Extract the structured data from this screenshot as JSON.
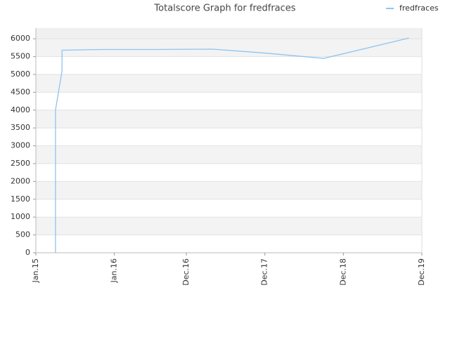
{
  "chart_data": {
    "type": "line",
    "title": "Totalscore Graph for fredfraces",
    "x": [
      "2015-04",
      "2015-04",
      "2015-05",
      "2015-05",
      "2015-11",
      "2016-07",
      "2017-04",
      "2017-12",
      "2018-09",
      "2019-10"
    ],
    "series": [
      {
        "name": "fredfraces",
        "color": "#8ec4f2",
        "values": [
          0,
          4000,
          5100,
          5680,
          5700,
          5700,
          5710,
          5600,
          5450,
          6020
        ]
      }
    ],
    "xlim": [
      "2015-01",
      "2019-12"
    ],
    "xticks": [
      {
        "value": "2015-01",
        "label": "Jan.15"
      },
      {
        "value": "2016-01",
        "label": "Jan.16"
      },
      {
        "value": "2016-12",
        "label": "Dec.16"
      },
      {
        "value": "2017-12",
        "label": "Dec.17"
      },
      {
        "value": "2018-12",
        "label": "Dec.18"
      },
      {
        "value": "2019-12",
        "label": "Dec.19"
      }
    ],
    "ylim": [
      0,
      6300
    ],
    "yticks": [
      0,
      500,
      1000,
      1500,
      2000,
      2500,
      3000,
      3500,
      4000,
      4500,
      5000,
      5500,
      6000
    ],
    "grid": true,
    "legend": "top-right"
  }
}
